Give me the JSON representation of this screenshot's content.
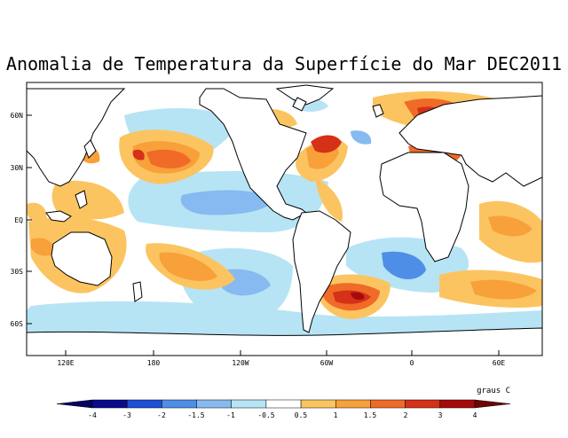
{
  "title": "Anomalia de Temperatura da Superfície do Mar DEC2011",
  "lat_ticks": [
    "60N",
    "30N",
    "EQ",
    "30S",
    "60S"
  ],
  "lon_ticks": [
    "120E",
    "180",
    "120W",
    "60W",
    "0",
    "60E"
  ],
  "colorbar": {
    "units": "graus C",
    "labels": [
      "-4",
      "-3",
      "-2",
      "-1.5",
      "-1",
      "-0.5",
      "0.5",
      "1",
      "1.5",
      "2",
      "3",
      "4"
    ],
    "colors": [
      "#0b0b8c",
      "#1e4fd4",
      "#4f8ee6",
      "#86baf0",
      "#b6e4f5",
      "#ffffff",
      "#fbc460",
      "#f8a03a",
      "#f06a28",
      "#d53018",
      "#a60b0b"
    ]
  }
}
